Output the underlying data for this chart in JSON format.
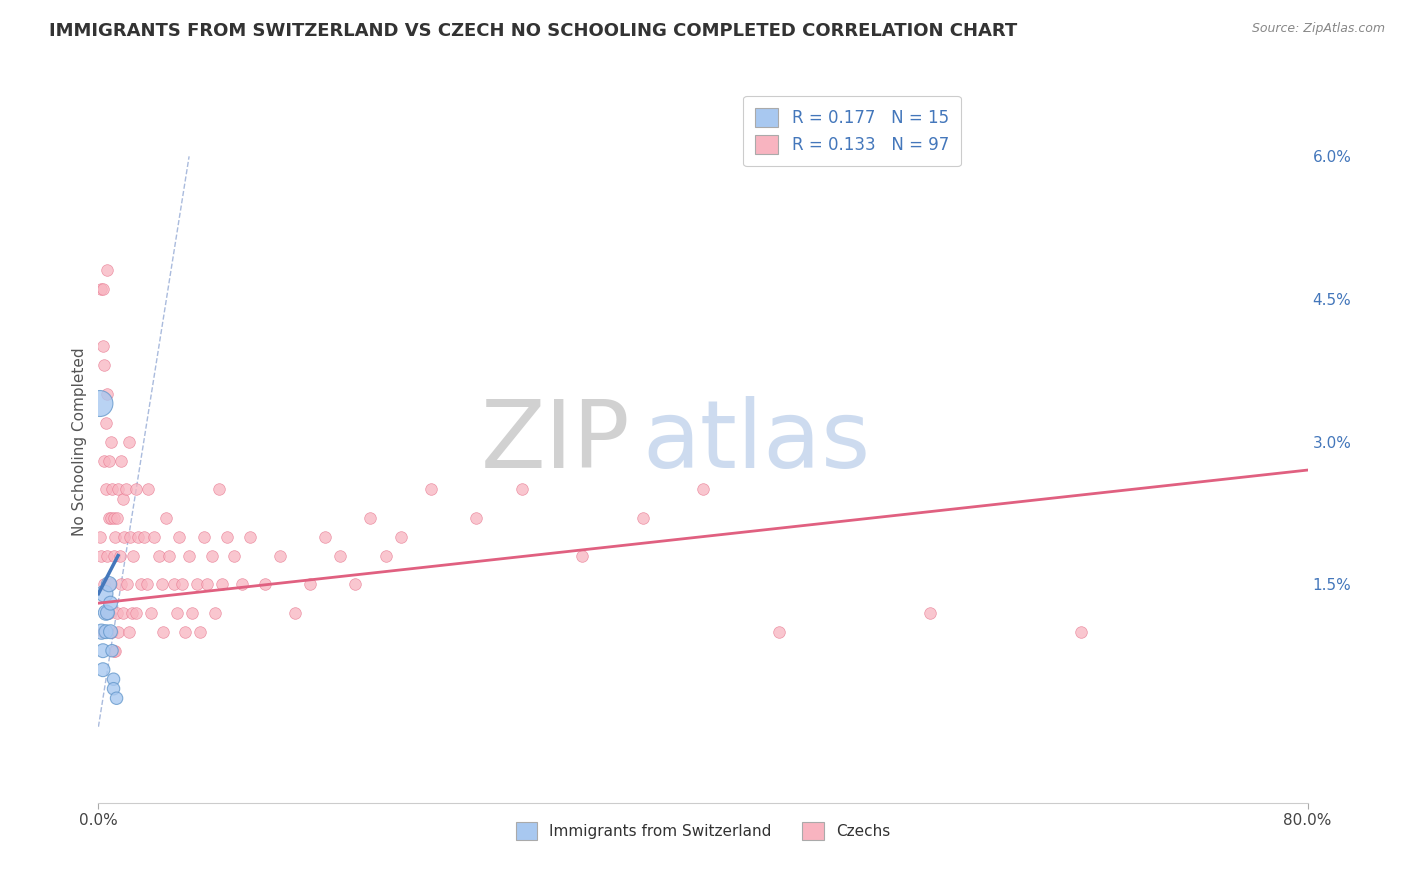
{
  "title": "IMMIGRANTS FROM SWITZERLAND VS CZECH NO SCHOOLING COMPLETED CORRELATION CHART",
  "source": "Source: ZipAtlas.com",
  "ylabel": "No Schooling Completed",
  "xlim": [
    0.0,
    0.8
  ],
  "ylim": [
    -0.008,
    0.068
  ],
  "yticks_right": [
    0.0,
    0.015,
    0.03,
    0.045,
    0.06
  ],
  "ytick_labels_right": [
    "",
    "1.5%",
    "3.0%",
    "4.5%",
    "6.0%"
  ],
  "legend_items": [
    {
      "label": "R = 0.177   N = 15",
      "color": "#a8c8f0"
    },
    {
      "label": "R = 0.133   N = 97",
      "color": "#f8b4c0"
    }
  ],
  "legend_bottom": [
    {
      "label": "Immigrants from Switzerland",
      "color": "#a8c8f0"
    },
    {
      "label": "Czechs",
      "color": "#f8b4c0"
    }
  ],
  "swiss_scatter": {
    "x": [
      0.001,
      0.002,
      0.003,
      0.003,
      0.004,
      0.005,
      0.005,
      0.006,
      0.007,
      0.008,
      0.008,
      0.009,
      0.01,
      0.01,
      0.012
    ],
    "y": [
      0.034,
      0.01,
      0.008,
      0.006,
      0.014,
      0.012,
      0.01,
      0.012,
      0.015,
      0.013,
      0.01,
      0.008,
      0.005,
      0.004,
      0.003
    ],
    "sizes": [
      350,
      120,
      100,
      100,
      150,
      120,
      100,
      100,
      120,
      100,
      100,
      80,
      80,
      80,
      80
    ],
    "color": "#a8c8f0",
    "edgecolor": "#6699cc"
  },
  "czech_scatter": {
    "x": [
      0.001,
      0.002,
      0.002,
      0.003,
      0.003,
      0.003,
      0.004,
      0.004,
      0.004,
      0.005,
      0.005,
      0.005,
      0.006,
      0.006,
      0.006,
      0.007,
      0.007,
      0.007,
      0.008,
      0.008,
      0.008,
      0.009,
      0.009,
      0.01,
      0.01,
      0.01,
      0.011,
      0.011,
      0.012,
      0.012,
      0.013,
      0.013,
      0.014,
      0.015,
      0.015,
      0.016,
      0.016,
      0.017,
      0.018,
      0.019,
      0.02,
      0.02,
      0.021,
      0.022,
      0.023,
      0.025,
      0.025,
      0.026,
      0.028,
      0.03,
      0.032,
      0.033,
      0.035,
      0.037,
      0.04,
      0.042,
      0.043,
      0.045,
      0.047,
      0.05,
      0.052,
      0.053,
      0.055,
      0.057,
      0.06,
      0.062,
      0.065,
      0.067,
      0.07,
      0.072,
      0.075,
      0.077,
      0.08,
      0.082,
      0.085,
      0.09,
      0.095,
      0.1,
      0.11,
      0.12,
      0.13,
      0.14,
      0.15,
      0.16,
      0.17,
      0.18,
      0.19,
      0.2,
      0.22,
      0.25,
      0.28,
      0.32,
      0.36,
      0.4,
      0.45,
      0.55,
      0.65
    ],
    "y": [
      0.02,
      0.046,
      0.018,
      0.046,
      0.04,
      0.01,
      0.038,
      0.028,
      0.015,
      0.032,
      0.025,
      0.012,
      0.048,
      0.035,
      0.018,
      0.028,
      0.022,
      0.012,
      0.03,
      0.022,
      0.015,
      0.025,
      0.01,
      0.022,
      0.018,
      0.008,
      0.02,
      0.008,
      0.022,
      0.012,
      0.025,
      0.01,
      0.018,
      0.028,
      0.015,
      0.024,
      0.012,
      0.02,
      0.025,
      0.015,
      0.03,
      0.01,
      0.02,
      0.012,
      0.018,
      0.025,
      0.012,
      0.02,
      0.015,
      0.02,
      0.015,
      0.025,
      0.012,
      0.02,
      0.018,
      0.015,
      0.01,
      0.022,
      0.018,
      0.015,
      0.012,
      0.02,
      0.015,
      0.01,
      0.018,
      0.012,
      0.015,
      0.01,
      0.02,
      0.015,
      0.018,
      0.012,
      0.025,
      0.015,
      0.02,
      0.018,
      0.015,
      0.02,
      0.015,
      0.018,
      0.012,
      0.015,
      0.02,
      0.018,
      0.015,
      0.022,
      0.018,
      0.02,
      0.025,
      0.022,
      0.025,
      0.018,
      0.022,
      0.025,
      0.01,
      0.012,
      0.01
    ],
    "sizes": 70,
    "color": "#f8b4c0",
    "edgecolor": "#e87890"
  },
  "swiss_trendline": {
    "x": [
      0.0,
      0.013
    ],
    "y": [
      0.014,
      0.018
    ],
    "color": "#4477bb",
    "linewidth": 2.5
  },
  "czech_trendline": {
    "x": [
      0.0,
      0.8
    ],
    "y": [
      0.013,
      0.027
    ],
    "color": "#e06080",
    "linewidth": 2.0
  },
  "diagonal_line": {
    "x": [
      0.0,
      0.06
    ],
    "y": [
      0.0,
      0.06
    ],
    "color": "#aabbdd",
    "linewidth": 1.0,
    "linestyle": "dashed"
  },
  "watermark_zip": "ZIP",
  "watermark_atlas": "atlas",
  "background_color": "#ffffff",
  "grid_color": "#cccccc"
}
